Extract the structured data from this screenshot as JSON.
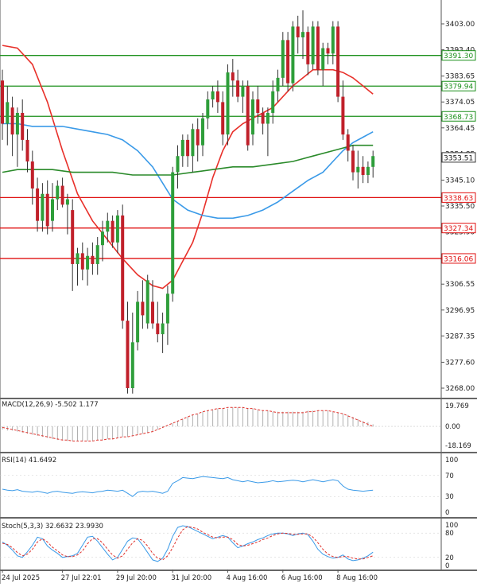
{
  "chart_data": {
    "type": "candlestick",
    "price_axis": {
      "ticks": [
        "3403.00",
        "3393.40",
        "3383.65",
        "3374.05",
        "3364.45",
        "3354.85",
        "3345.10",
        "3335.50",
        "3325.90",
        "3316.30",
        "3306.55",
        "3296.95",
        "3287.35",
        "3277.60",
        "3268.00"
      ],
      "ylim": [
        3265,
        3412
      ]
    },
    "time_axis": {
      "labels": [
        "24 Jul 2025",
        "27 Jul 22:01",
        "29 Jul 20:00",
        "31 Jul 20:00",
        "4 Aug 16:00",
        "6 Aug 16:00",
        "8 Aug 16:00"
      ],
      "label_bar_index": [
        0,
        12,
        23,
        34,
        45,
        56,
        67
      ]
    },
    "candles": [
      {
        "o": 3382,
        "h": 3386,
        "l": 3360,
        "c": 3366
      },
      {
        "o": 3366,
        "h": 3380,
        "l": 3358,
        "c": 3374
      },
      {
        "o": 3372,
        "h": 3376,
        "l": 3354,
        "c": 3362
      },
      {
        "o": 3362,
        "h": 3372,
        "l": 3350,
        "c": 3370
      },
      {
        "o": 3370,
        "h": 3375,
        "l": 3356,
        "c": 3360
      },
      {
        "o": 3360,
        "h": 3364,
        "l": 3348,
        "c": 3352
      },
      {
        "o": 3352,
        "h": 3356,
        "l": 3336,
        "c": 3342
      },
      {
        "o": 3342,
        "h": 3346,
        "l": 3326,
        "c": 3330
      },
      {
        "o": 3330,
        "h": 3344,
        "l": 3326,
        "c": 3340
      },
      {
        "o": 3340,
        "h": 3345,
        "l": 3325,
        "c": 3328
      },
      {
        "o": 3330,
        "h": 3344,
        "l": 3326,
        "c": 3338
      },
      {
        "o": 3338,
        "h": 3345,
        "l": 3334,
        "c": 3343
      },
      {
        "o": 3343,
        "h": 3346,
        "l": 3335,
        "c": 3336
      },
      {
        "o": 3336,
        "h": 3340,
        "l": 3325,
        "c": 3338
      },
      {
        "o": 3334,
        "h": 3338,
        "l": 3304,
        "c": 3314
      },
      {
        "o": 3314,
        "h": 3320,
        "l": 3306,
        "c": 3318
      },
      {
        "o": 3318,
        "h": 3322,
        "l": 3308,
        "c": 3312
      },
      {
        "o": 3312,
        "h": 3320,
        "l": 3306,
        "c": 3317
      },
      {
        "o": 3317,
        "h": 3322,
        "l": 3310,
        "c": 3314
      },
      {
        "o": 3314,
        "h": 3324,
        "l": 3310,
        "c": 3321
      },
      {
        "o": 3321,
        "h": 3330,
        "l": 3315,
        "c": 3326
      },
      {
        "o": 3326,
        "h": 3333,
        "l": 3322,
        "c": 3330
      },
      {
        "o": 3330,
        "h": 3332,
        "l": 3320,
        "c": 3322
      },
      {
        "o": 3322,
        "h": 3334,
        "l": 3318,
        "c": 3332
      },
      {
        "o": 3332,
        "h": 3336,
        "l": 3290,
        "c": 3293
      },
      {
        "o": 3293,
        "h": 3300,
        "l": 3266,
        "c": 3268
      },
      {
        "o": 3268,
        "h": 3296,
        "l": 3266,
        "c": 3285
      },
      {
        "o": 3285,
        "h": 3304,
        "l": 3282,
        "c": 3300
      },
      {
        "o": 3300,
        "h": 3308,
        "l": 3290,
        "c": 3295
      },
      {
        "o": 3292,
        "h": 3310,
        "l": 3290,
        "c": 3308
      },
      {
        "o": 3300,
        "h": 3308,
        "l": 3290,
        "c": 3292
      },
      {
        "o": 3292,
        "h": 3300,
        "l": 3285,
        "c": 3288
      },
      {
        "o": 3288,
        "h": 3296,
        "l": 3281,
        "c": 3292
      },
      {
        "o": 3292,
        "h": 3306,
        "l": 3284,
        "c": 3303
      },
      {
        "o": 3303,
        "h": 3350,
        "l": 3300,
        "c": 3348
      },
      {
        "o": 3348,
        "h": 3358,
        "l": 3342,
        "c": 3354
      },
      {
        "o": 3354,
        "h": 3362,
        "l": 3350,
        "c": 3360
      },
      {
        "o": 3360,
        "h": 3362,
        "l": 3350,
        "c": 3354
      },
      {
        "o": 3354,
        "h": 3366,
        "l": 3348,
        "c": 3364
      },
      {
        "o": 3364,
        "h": 3368,
        "l": 3352,
        "c": 3358
      },
      {
        "o": 3358,
        "h": 3370,
        "l": 3354,
        "c": 3368
      },
      {
        "o": 3368,
        "h": 3378,
        "l": 3364,
        "c": 3375
      },
      {
        "o": 3375,
        "h": 3380,
        "l": 3372,
        "c": 3378
      },
      {
        "o": 3378,
        "h": 3382,
        "l": 3370,
        "c": 3374
      },
      {
        "o": 3374,
        "h": 3378,
        "l": 3358,
        "c": 3362
      },
      {
        "o": 3362,
        "h": 3388,
        "l": 3358,
        "c": 3385
      },
      {
        "o": 3385,
        "h": 3390,
        "l": 3376,
        "c": 3382
      },
      {
        "o": 3382,
        "h": 3386,
        "l": 3374,
        "c": 3376
      },
      {
        "o": 3376,
        "h": 3382,
        "l": 3370,
        "c": 3380
      },
      {
        "o": 3380,
        "h": 3382,
        "l": 3356,
        "c": 3358
      },
      {
        "o": 3362,
        "h": 3378,
        "l": 3358,
        "c": 3375
      },
      {
        "o": 3375,
        "h": 3380,
        "l": 3366,
        "c": 3370
      },
      {
        "o": 3370,
        "h": 3372,
        "l": 3362,
        "c": 3366
      },
      {
        "o": 3366,
        "h": 3372,
        "l": 3354,
        "c": 3370
      },
      {
        "o": 3370,
        "h": 3382,
        "l": 3366,
        "c": 3378
      },
      {
        "o": 3378,
        "h": 3386,
        "l": 3374,
        "c": 3383
      },
      {
        "o": 3383,
        "h": 3400,
        "l": 3380,
        "c": 3397
      },
      {
        "o": 3397,
        "h": 3400,
        "l": 3378,
        "c": 3381
      },
      {
        "o": 3381,
        "h": 3404,
        "l": 3378,
        "c": 3402
      },
      {
        "o": 3402,
        "h": 3406,
        "l": 3392,
        "c": 3398
      },
      {
        "o": 3398,
        "h": 3408,
        "l": 3390,
        "c": 3400
      },
      {
        "o": 3400,
        "h": 3402,
        "l": 3384,
        "c": 3388
      },
      {
        "o": 3388,
        "h": 3404,
        "l": 3386,
        "c": 3402
      },
      {
        "o": 3402,
        "h": 3404,
        "l": 3384,
        "c": 3386
      },
      {
        "o": 3386,
        "h": 3396,
        "l": 3380,
        "c": 3394
      },
      {
        "o": 3394,
        "h": 3396,
        "l": 3388,
        "c": 3392
      },
      {
        "o": 3392,
        "h": 3404,
        "l": 3388,
        "c": 3402
      },
      {
        "o": 3402,
        "h": 3404,
        "l": 3374,
        "c": 3376
      },
      {
        "o": 3376,
        "h": 3382,
        "l": 3360,
        "c": 3362
      },
      {
        "o": 3362,
        "h": 3364,
        "l": 3352,
        "c": 3356
      },
      {
        "o": 3356,
        "h": 3358,
        "l": 3345,
        "c": 3348
      },
      {
        "o": 3348,
        "h": 3356,
        "l": 3342,
        "c": 3350
      },
      {
        "o": 3350,
        "h": 3354,
        "l": 3344,
        "c": 3347
      },
      {
        "o": 3347,
        "h": 3352,
        "l": 3344,
        "c": 3350
      },
      {
        "o": 3350,
        "h": 3356,
        "l": 3346,
        "c": 3354
      }
    ],
    "horizontal_levels": [
      {
        "value": 3391.3,
        "label": "3391.30",
        "color": "#1a8f1a"
      },
      {
        "value": 3379.94,
        "label": "3379.94",
        "color": "#1a8f1a"
      },
      {
        "value": 3368.73,
        "label": "3368.73",
        "color": "#1a8f1a"
      },
      {
        "value": 3338.63,
        "label": "3338.63",
        "color": "#e01010"
      },
      {
        "value": 3327.34,
        "label": "3327.34",
        "color": "#e01010"
      },
      {
        "value": 3316.06,
        "label": "3316.06",
        "color": "#e01010"
      }
    ],
    "current_price_label": "3353.51",
    "current_price_value": 3353.51,
    "moving_averages": [
      {
        "color": "#e8302a",
        "points": [
          [
            0,
            3395
          ],
          [
            3,
            3394
          ],
          [
            6,
            3388
          ],
          [
            9,
            3374
          ],
          [
            12,
            3356
          ],
          [
            15,
            3340
          ],
          [
            18,
            3330
          ],
          [
            21,
            3323
          ],
          [
            24,
            3316
          ],
          [
            27,
            3310
          ],
          [
            30,
            3306
          ],
          [
            32,
            3305
          ],
          [
            34,
            3308
          ],
          [
            36,
            3315
          ],
          [
            38,
            3322
          ],
          [
            40,
            3333
          ],
          [
            42,
            3346
          ],
          [
            44,
            3356
          ],
          [
            46,
            3363
          ],
          [
            48,
            3366
          ],
          [
            50,
            3368
          ],
          [
            52,
            3370
          ],
          [
            54,
            3372
          ],
          [
            56,
            3376
          ],
          [
            58,
            3380
          ],
          [
            60,
            3383
          ],
          [
            62,
            3386
          ],
          [
            64,
            3386
          ],
          [
            66,
            3386
          ],
          [
            68,
            3385
          ],
          [
            70,
            3383
          ],
          [
            72,
            3380
          ],
          [
            74,
            3377
          ]
        ]
      },
      {
        "color": "#3a9ae8",
        "points": [
          [
            0,
            3366
          ],
          [
            3,
            3366
          ],
          [
            6,
            3365
          ],
          [
            9,
            3365
          ],
          [
            12,
            3365
          ],
          [
            15,
            3364
          ],
          [
            18,
            3363
          ],
          [
            21,
            3362
          ],
          [
            24,
            3360
          ],
          [
            27,
            3356
          ],
          [
            30,
            3350
          ],
          [
            32,
            3344
          ],
          [
            34,
            3338
          ],
          [
            37,
            3334
          ],
          [
            40,
            3332
          ],
          [
            43,
            3331
          ],
          [
            46,
            3331
          ],
          [
            49,
            3332
          ],
          [
            52,
            3334
          ],
          [
            55,
            3337
          ],
          [
            58,
            3341
          ],
          [
            61,
            3345
          ],
          [
            64,
            3348
          ],
          [
            66,
            3352
          ],
          [
            68,
            3356
          ],
          [
            70,
            3359
          ],
          [
            72,
            3361
          ],
          [
            74,
            3363
          ]
        ]
      },
      {
        "color": "#2a8a2a",
        "points": [
          [
            0,
            3348
          ],
          [
            3,
            3349
          ],
          [
            6,
            3349
          ],
          [
            10,
            3349
          ],
          [
            14,
            3348
          ],
          [
            18,
            3348
          ],
          [
            22,
            3348
          ],
          [
            26,
            3347
          ],
          [
            30,
            3347
          ],
          [
            34,
            3347
          ],
          [
            38,
            3348
          ],
          [
            42,
            3349
          ],
          [
            46,
            3350
          ],
          [
            50,
            3350
          ],
          [
            54,
            3351
          ],
          [
            58,
            3352
          ],
          [
            62,
            3354
          ],
          [
            66,
            3356
          ],
          [
            68,
            3357
          ],
          [
            70,
            3358
          ],
          [
            72,
            3358
          ],
          [
            74,
            3358
          ]
        ]
      }
    ],
    "macd": {
      "title": "MACD(12,26,9) -5.502 1.177",
      "ticks": [
        "19.769",
        "0.00",
        "-18.169"
      ],
      "range": [
        -18.169,
        19.769
      ],
      "histogram": [
        -3,
        -4,
        -4,
        -5,
        -6,
        -7,
        -8,
        -9,
        -10,
        -11,
        -12,
        -13,
        -13,
        -14,
        -14,
        -14,
        -14,
        -14,
        -14,
        -13,
        -13,
        -12,
        -12,
        -11,
        -10,
        -10,
        -9,
        -8,
        -7,
        -6,
        -5,
        -3,
        -1,
        0,
        3,
        5,
        7,
        9,
        11,
        12,
        14,
        15,
        16,
        17,
        17,
        17,
        18,
        18,
        18,
        17,
        17,
        16,
        15,
        15,
        14,
        14,
        14,
        14,
        14,
        14,
        14,
        15,
        15,
        15,
        15,
        15,
        14,
        13,
        12,
        11,
        9,
        7,
        5,
        4,
        2
      ],
      "signal": [
        -1,
        -2,
        -3,
        -4,
        -5,
        -6,
        -7,
        -8,
        -9,
        -10,
        -11,
        -12,
        -13,
        -13,
        -14,
        -14,
        -14,
        -14,
        -14,
        -13,
        -13,
        -12,
        -12,
        -11,
        -10,
        -10,
        -9,
        -8,
        -7,
        -6,
        -5,
        -3,
        -1,
        1,
        3,
        5,
        7,
        9,
        11,
        12,
        14,
        15,
        16,
        17,
        17,
        18,
        18,
        18,
        18,
        17,
        17,
        16,
        15,
        15,
        14,
        13,
        13,
        13,
        13,
        13,
        13,
        14,
        14,
        15,
        15,
        15,
        14,
        13,
        12,
        10,
        8,
        6,
        4,
        2,
        0
      ]
    },
    "rsi": {
      "title": "RSI(14) 41.6492",
      "ticks": [
        "100",
        "70",
        "30",
        "0"
      ],
      "range": [
        0,
        100
      ],
      "values": [
        44,
        42,
        41,
        43,
        40,
        39,
        38,
        40,
        38,
        36,
        39,
        40,
        38,
        37,
        36,
        38,
        39,
        38,
        37,
        39,
        40,
        42,
        41,
        40,
        42,
        36,
        30,
        38,
        40,
        39,
        40,
        38,
        36,
        40,
        55,
        60,
        66,
        65,
        64,
        66,
        68,
        67,
        66,
        65,
        64,
        66,
        62,
        60,
        58,
        60,
        58,
        56,
        57,
        58,
        60,
        58,
        59,
        60,
        61,
        60,
        58,
        60,
        62,
        60,
        58,
        60,
        62,
        60,
        50,
        44,
        42,
        41,
        40,
        41,
        42
      ]
    },
    "stoch": {
      "title": "Stoch(5,3,3) 32.6632 23.9930",
      "ticks": [
        "100",
        "80",
        "20",
        "0"
      ],
      "range": [
        0,
        100
      ],
      "k": [
        58,
        50,
        38,
        24,
        20,
        34,
        50,
        70,
        66,
        48,
        38,
        30,
        20,
        22,
        24,
        30,
        50,
        70,
        72,
        60,
        44,
        28,
        14,
        20,
        40,
        60,
        68,
        66,
        50,
        32,
        14,
        10,
        18,
        40,
        72,
        94,
        98,
        96,
        90,
        84,
        78,
        72,
        66,
        70,
        74,
        70,
        56,
        44,
        48,
        54,
        58,
        64,
        68,
        74,
        78,
        80,
        80,
        78,
        74,
        78,
        80,
        76,
        60,
        40,
        28,
        22,
        18,
        20,
        26,
        16,
        12,
        14,
        18,
        24,
        33
      ],
      "d": [
        55,
        52,
        44,
        32,
        24,
        28,
        40,
        58,
        66,
        58,
        45,
        36,
        26,
        22,
        22,
        26,
        36,
        54,
        66,
        66,
        56,
        40,
        26,
        18,
        24,
        40,
        56,
        66,
        62,
        48,
        30,
        18,
        14,
        24,
        44,
        68,
        88,
        96,
        94,
        90,
        82,
        76,
        70,
        68,
        70,
        70,
        64,
        52,
        48,
        50,
        54,
        58,
        64,
        68,
        74,
        78,
        80,
        79,
        77,
        77,
        78,
        78,
        70,
        56,
        40,
        28,
        22,
        20,
        22,
        22,
        18,
        16,
        16,
        20,
        24
      ]
    }
  }
}
